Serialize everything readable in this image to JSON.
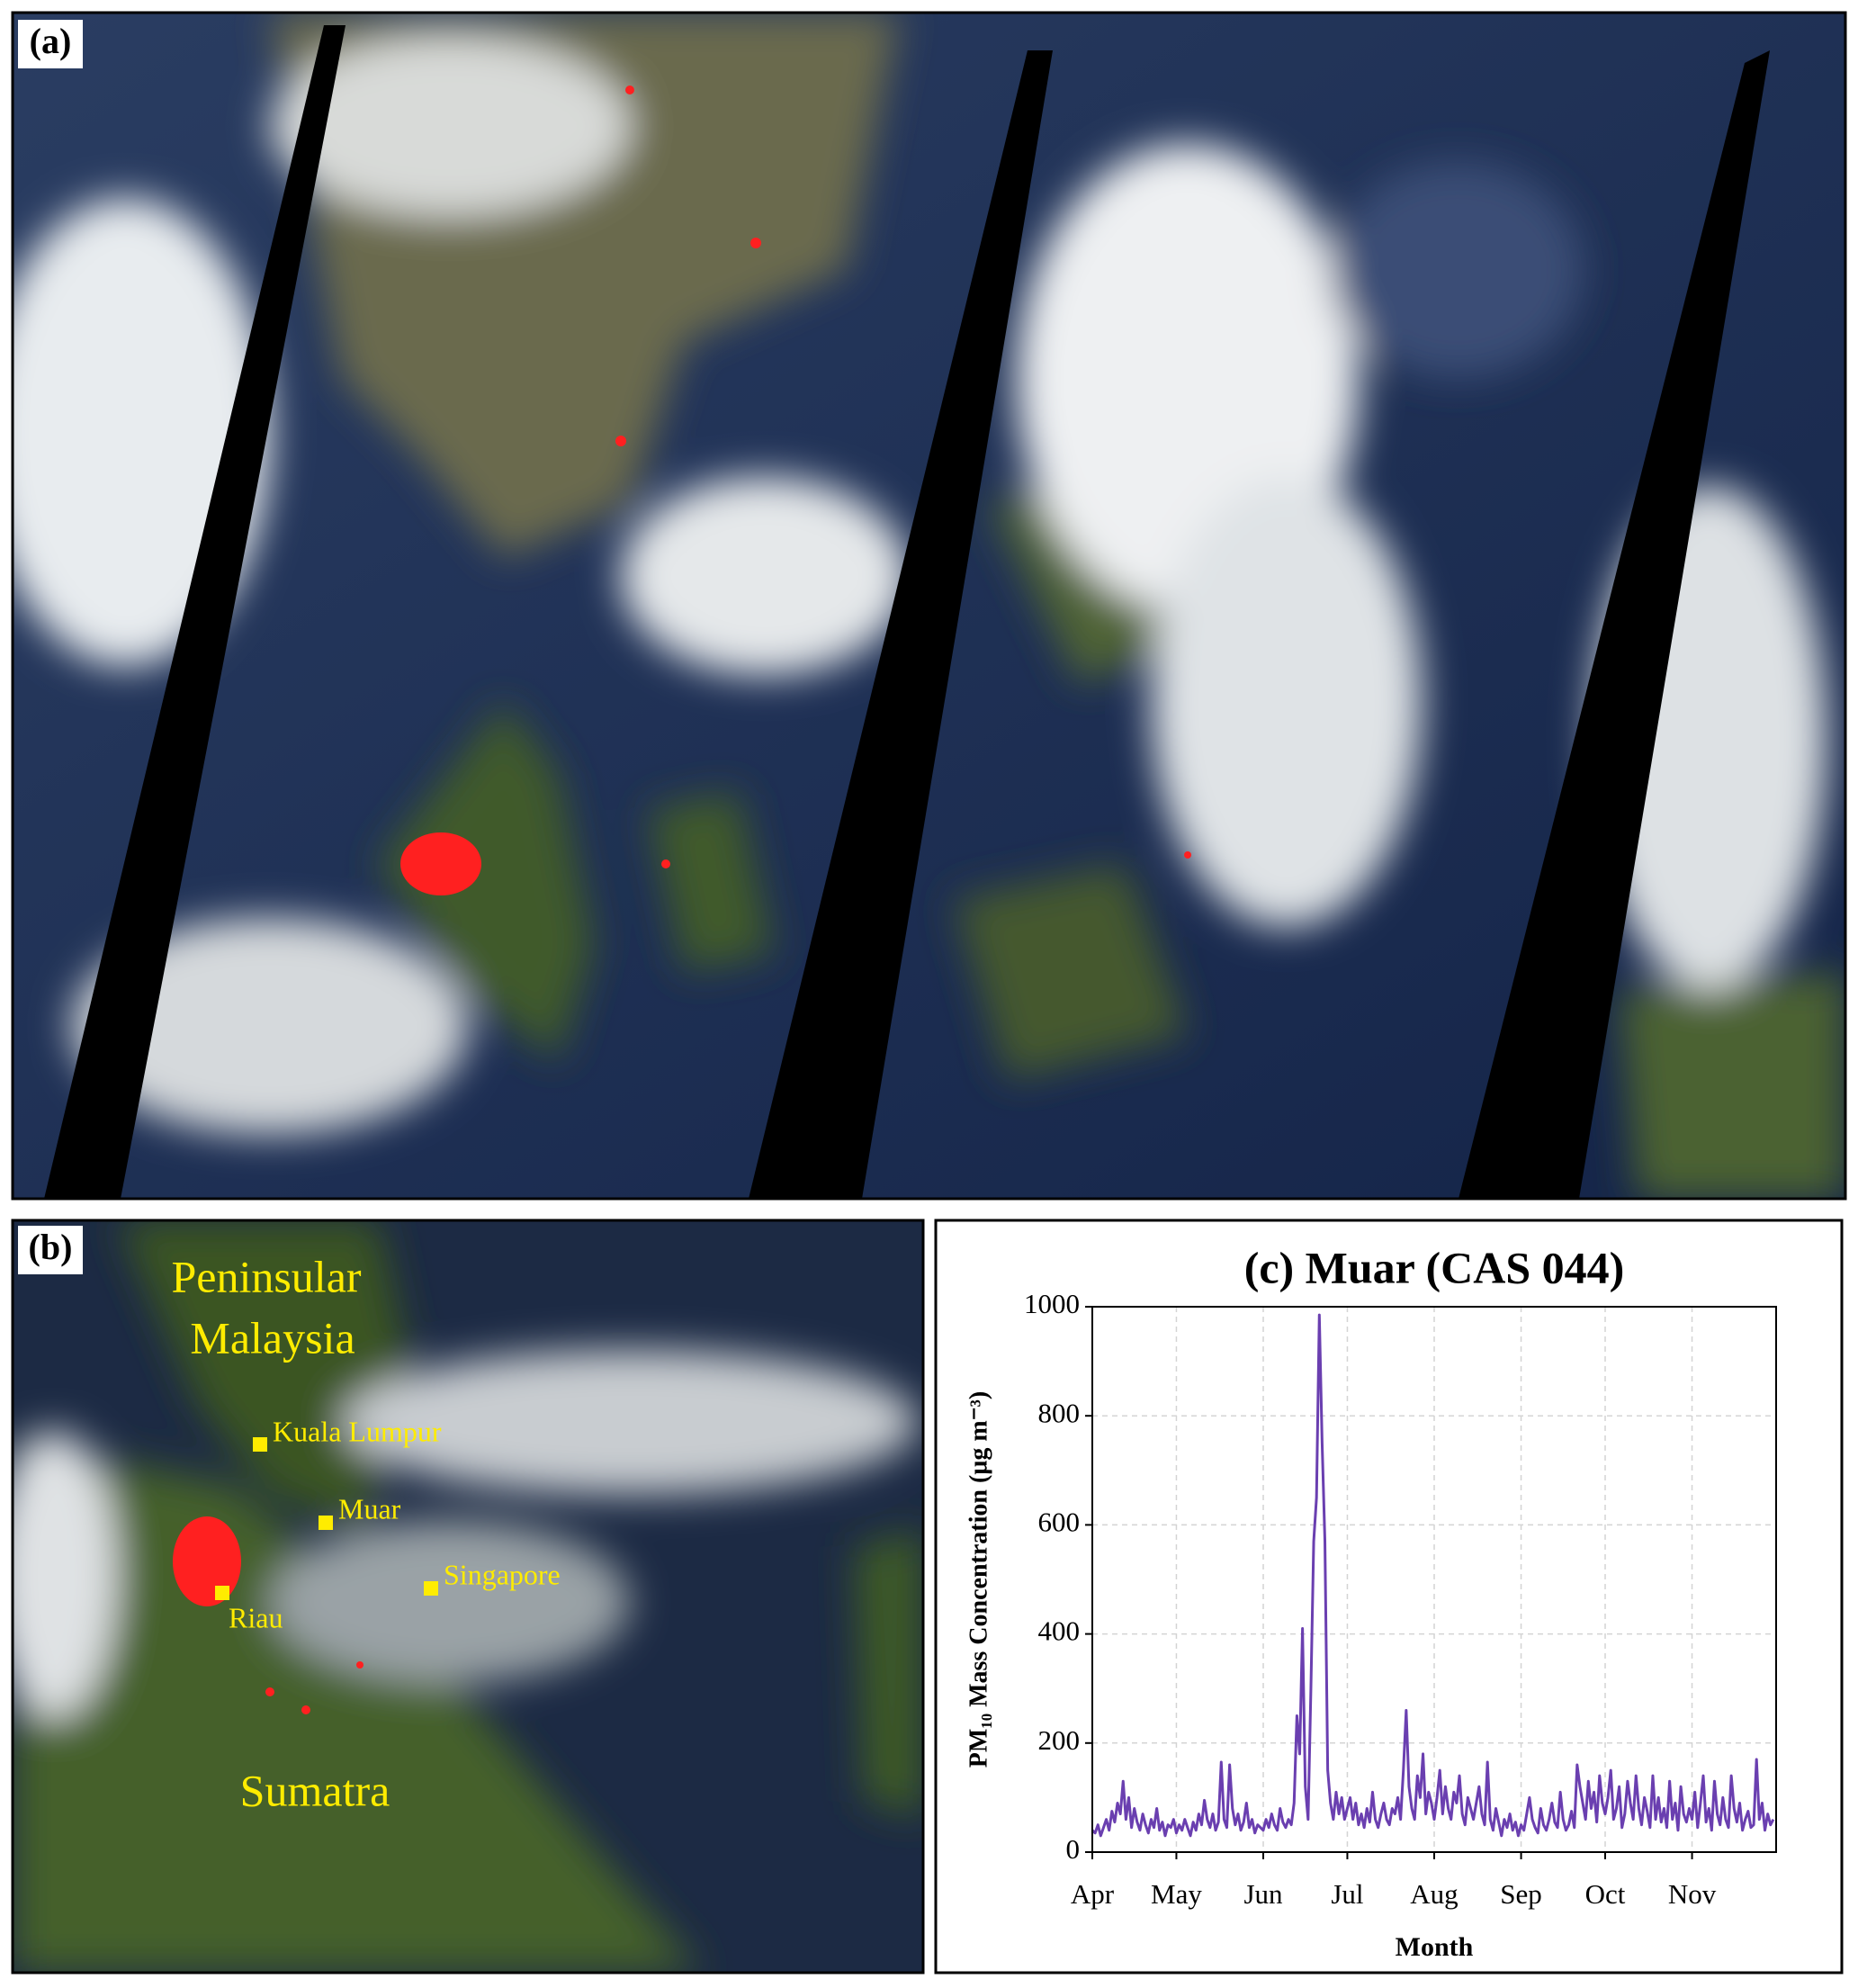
{
  "panels": {
    "a": {
      "label": "(a)"
    },
    "b": {
      "label": "(b)",
      "places": {
        "region1_line1": "Peninsular",
        "region1_line2": "Malaysia",
        "kuala_lumpur": "Kuala Lumpur",
        "muar": "Muar",
        "singapore": "Singapore",
        "riau": "Riau",
        "sumatra": "Sumatra"
      }
    }
  },
  "chart_data": {
    "type": "line",
    "title": "(c) Muar (CAS 044)",
    "xlabel": "Month",
    "ylabel": "PM₁₀ Mass Concentration (µg m⁻³)",
    "color": "#6a3fb0",
    "grid": true,
    "xlim": [
      0,
      244
    ],
    "xticks": [
      {
        "value": 0,
        "label": "Apr"
      },
      {
        "value": 30,
        "label": "May"
      },
      {
        "value": 61,
        "label": "Jun"
      },
      {
        "value": 91,
        "label": "Jul"
      },
      {
        "value": 122,
        "label": "Aug"
      },
      {
        "value": 153,
        "label": "Sep"
      },
      {
        "value": 183,
        "label": "Oct"
      },
      {
        "value": 214,
        "label": "Nov"
      }
    ],
    "ylim": [
      0,
      1000
    ],
    "yticks": [
      0,
      200,
      400,
      600,
      800,
      1000
    ],
    "x": [
      0,
      1,
      2,
      3,
      4,
      5,
      6,
      7,
      8,
      9,
      10,
      11,
      12,
      13,
      14,
      15,
      16,
      17,
      18,
      19,
      20,
      21,
      22,
      23,
      24,
      25,
      26,
      27,
      28,
      29,
      30,
      31,
      32,
      33,
      34,
      35,
      36,
      37,
      38,
      39,
      40,
      41,
      42,
      43,
      44,
      45,
      46,
      47,
      48,
      49,
      50,
      51,
      52,
      53,
      54,
      55,
      56,
      57,
      58,
      59,
      60,
      61,
      62,
      63,
      64,
      65,
      66,
      67,
      68,
      69,
      70,
      71,
      72,
      73,
      74,
      75,
      76,
      77,
      78,
      79,
      80,
      81,
      82,
      83,
      84,
      85,
      86,
      87,
      88,
      89,
      90,
      91,
      92,
      93,
      94,
      95,
      96,
      97,
      98,
      99,
      100,
      101,
      102,
      103,
      104,
      105,
      106,
      107,
      108,
      109,
      110,
      111,
      112,
      113,
      114,
      115,
      116,
      117,
      118,
      119,
      120,
      121,
      122,
      123,
      124,
      125,
      126,
      127,
      128,
      129,
      130,
      131,
      132,
      133,
      134,
      135,
      136,
      137,
      138,
      139,
      140,
      141,
      142,
      143,
      144,
      145,
      146,
      147,
      148,
      149,
      150,
      151,
      152,
      153,
      154,
      155,
      156,
      157,
      158,
      159,
      160,
      161,
      162,
      163,
      164,
      165,
      166,
      167,
      168,
      169,
      170,
      171,
      172,
      173,
      174,
      175,
      176,
      177,
      178,
      179,
      180,
      181,
      182,
      183,
      184,
      185,
      186,
      187,
      188,
      189,
      190,
      191,
      192,
      193,
      194,
      195,
      196,
      197,
      198,
      199,
      200,
      201,
      202,
      203,
      204,
      205,
      206,
      207,
      208,
      209,
      210,
      211,
      212,
      213,
      214,
      215,
      216,
      217,
      218,
      219,
      220,
      221,
      222,
      223,
      224,
      225,
      226,
      227,
      228,
      229,
      230,
      231,
      232,
      233,
      234,
      235,
      236,
      237,
      238,
      239,
      240,
      241,
      242,
      243
    ],
    "values": [
      40,
      35,
      50,
      30,
      45,
      60,
      40,
      75,
      55,
      90,
      70,
      130,
      60,
      100,
      45,
      80,
      55,
      40,
      70,
      50,
      35,
      60,
      45,
      80,
      40,
      55,
      30,
      50,
      45,
      60,
      35,
      50,
      40,
      60,
      45,
      30,
      55,
      40,
      70,
      50,
      95,
      60,
      45,
      70,
      40,
      55,
      165,
      60,
      45,
      160,
      80,
      50,
      70,
      40,
      55,
      90,
      45,
      60,
      35,
      50,
      45,
      40,
      60,
      45,
      70,
      50,
      40,
      80,
      55,
      45,
      60,
      50,
      90,
      250,
      180,
      410,
      120,
      60,
      300,
      570,
      650,
      985,
      750,
      570,
      150,
      90,
      60,
      110,
      70,
      100,
      60,
      80,
      100,
      60,
      90,
      50,
      70,
      45,
      80,
      55,
      110,
      60,
      45,
      70,
      90,
      60,
      50,
      80,
      70,
      100,
      60,
      150,
      260,
      120,
      80,
      60,
      140,
      100,
      180,
      70,
      110,
      90,
      60,
      100,
      150,
      70,
      120,
      80,
      60,
      110,
      90,
      140,
      70,
      50,
      100,
      80,
      60,
      90,
      120,
      70,
      50,
      165,
      60,
      40,
      80,
      55,
      30,
      60,
      45,
      70,
      40,
      55,
      30,
      50,
      40,
      70,
      100,
      60,
      45,
      35,
      80,
      50,
      40,
      60,
      90,
      55,
      45,
      110,
      60,
      40,
      50,
      75,
      45,
      160,
      120,
      90,
      60,
      130,
      80,
      110,
      55,
      140,
      90,
      70,
      100,
      150,
      60,
      80,
      120,
      45,
      70,
      130,
      90,
      60,
      140,
      80,
      50,
      100,
      75,
      45,
      140,
      60,
      100,
      55,
      80,
      45,
      130,
      60,
      90,
      40,
      120,
      70,
      55,
      80,
      60,
      110,
      45,
      90,
      140,
      55,
      80,
      40,
      130,
      70,
      50,
      100,
      60,
      45,
      140,
      80,
      55,
      90,
      40,
      60,
      75,
      45,
      50,
      170,
      60,
      90,
      40,
      70,
      50,
      60
    ]
  }
}
